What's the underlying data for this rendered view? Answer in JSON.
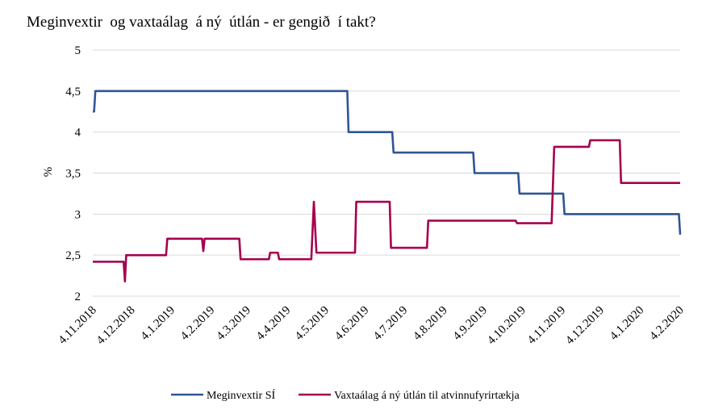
{
  "chart_data": {
    "type": "line",
    "title": "Meginvextir  og vaxtaálag  á ný  útlán - er gengið  í takt?",
    "ylabel": "%",
    "xlabel": "",
    "ylim": [
      2,
      5
    ],
    "yticks": [
      "2",
      "2,5",
      "3",
      "3,5",
      "4",
      "4,5",
      "5"
    ],
    "ytick_values": [
      2,
      2.5,
      3,
      3.5,
      4,
      4.5,
      5
    ],
    "xlim": [
      "2018-11-04",
      "2020-02-04"
    ],
    "xtick_labels": [
      "4.11.2018",
      "4.12.2018",
      "4.1.2019",
      "4.2.2019",
      "4.3.2019",
      "4.4.2019",
      "4.5.2019",
      "4.6.2019",
      "4.7.2019",
      "4.8.2019",
      "4.9.2019",
      "4.10.2019",
      "4.11.2019",
      "4.12.2019",
      "4.1.2020",
      "4.2.2020"
    ],
    "xtick_dates": [
      "2018-11-04",
      "2018-12-04",
      "2019-01-04",
      "2019-02-04",
      "2019-03-04",
      "2019-04-04",
      "2019-05-04",
      "2019-06-04",
      "2019-07-04",
      "2019-08-04",
      "2019-09-04",
      "2019-10-04",
      "2019-11-04",
      "2019-12-04",
      "2020-01-04",
      "2020-02-04"
    ],
    "grid": "horizontal",
    "legend": "bottom",
    "series": [
      {
        "name": "Meginvextir SÍ",
        "color": "#2f5597",
        "points": [
          [
            "2018-11-04",
            4.25
          ],
          [
            "2018-11-05",
            4.25
          ],
          [
            "2018-11-06",
            4.5
          ],
          [
            "2019-05-21",
            4.5
          ],
          [
            "2019-05-22",
            4.0
          ],
          [
            "2019-06-25",
            4.0
          ],
          [
            "2019-06-26",
            3.75
          ],
          [
            "2019-08-27",
            3.75
          ],
          [
            "2019-08-28",
            3.5
          ],
          [
            "2019-10-01",
            3.5
          ],
          [
            "2019-10-02",
            3.25
          ],
          [
            "2019-11-05",
            3.25
          ],
          [
            "2019-11-06",
            3.0
          ],
          [
            "2020-02-03",
            3.0
          ],
          [
            "2020-02-04",
            2.75
          ]
        ]
      },
      {
        "name": "Vaxtaálag á ný útlán til atvinnufyrirtækja",
        "color": "#a5004f",
        "points": [
          [
            "2018-11-04",
            2.42
          ],
          [
            "2018-11-28",
            2.42
          ],
          [
            "2018-11-29",
            2.18
          ],
          [
            "2018-11-30",
            2.5
          ],
          [
            "2018-12-31",
            2.5
          ],
          [
            "2019-01-01",
            2.7
          ],
          [
            "2019-01-28",
            2.7
          ],
          [
            "2019-01-29",
            2.55
          ],
          [
            "2019-01-30",
            2.7
          ],
          [
            "2019-02-26",
            2.7
          ],
          [
            "2019-02-27",
            2.45
          ],
          [
            "2019-03-21",
            2.45
          ],
          [
            "2019-03-22",
            2.53
          ],
          [
            "2019-03-28",
            2.53
          ],
          [
            "2019-03-29",
            2.45
          ],
          [
            "2019-04-23",
            2.45
          ],
          [
            "2019-04-25",
            3.15
          ],
          [
            "2019-04-27",
            2.53
          ],
          [
            "2019-05-27",
            2.53
          ],
          [
            "2019-05-28",
            3.15
          ],
          [
            "2019-06-23",
            3.15
          ],
          [
            "2019-06-24",
            2.59
          ],
          [
            "2019-07-22",
            2.59
          ],
          [
            "2019-07-23",
            2.92
          ],
          [
            "2019-09-29",
            2.92
          ],
          [
            "2019-09-30",
            2.89
          ],
          [
            "2019-10-27",
            2.89
          ],
          [
            "2019-10-29",
            3.82
          ],
          [
            "2019-11-25",
            3.82
          ],
          [
            "2019-11-26",
            3.9
          ],
          [
            "2019-12-19",
            3.9
          ],
          [
            "2019-12-20",
            3.38
          ],
          [
            "2020-02-04",
            3.38
          ]
        ]
      }
    ]
  }
}
